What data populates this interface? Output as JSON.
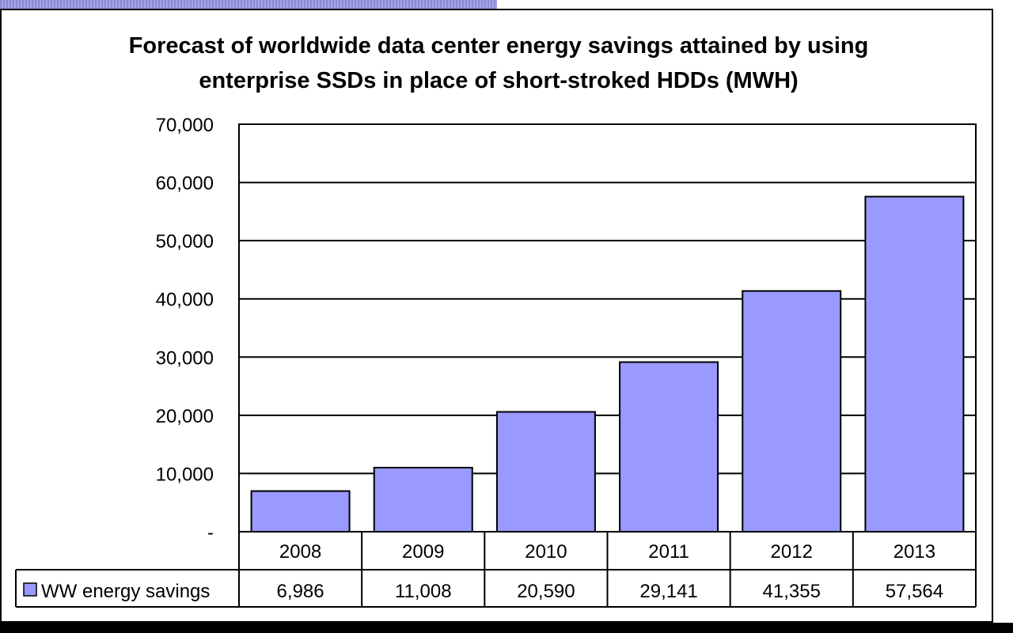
{
  "chart_data": {
    "type": "bar",
    "title": "Forecast of worldwide data center energy savings attained by using enterprise SSDs in place of short-stroked HDDs (MWH)",
    "categories": [
      "2008",
      "2009",
      "2010",
      "2011",
      "2012",
      "2013"
    ],
    "series": [
      {
        "name": "WW energy savings",
        "values": [
          6986,
          11008,
          20590,
          29141,
          41355,
          57564
        ],
        "value_labels": [
          "6,986",
          "11,008",
          "20,590",
          "29,141",
          "41,355",
          "57,564"
        ],
        "color": "#9999ff"
      }
    ],
    "ylim": [
      0,
      70000
    ],
    "yticks": [
      0,
      10000,
      20000,
      30000,
      40000,
      50000,
      60000,
      70000
    ],
    "ytick_labels": [
      "-",
      "10,000",
      "20,000",
      "30,000",
      "40,000",
      "50,000",
      "60,000",
      "70,000"
    ],
    "grid": true,
    "legend": "data-table-left"
  }
}
